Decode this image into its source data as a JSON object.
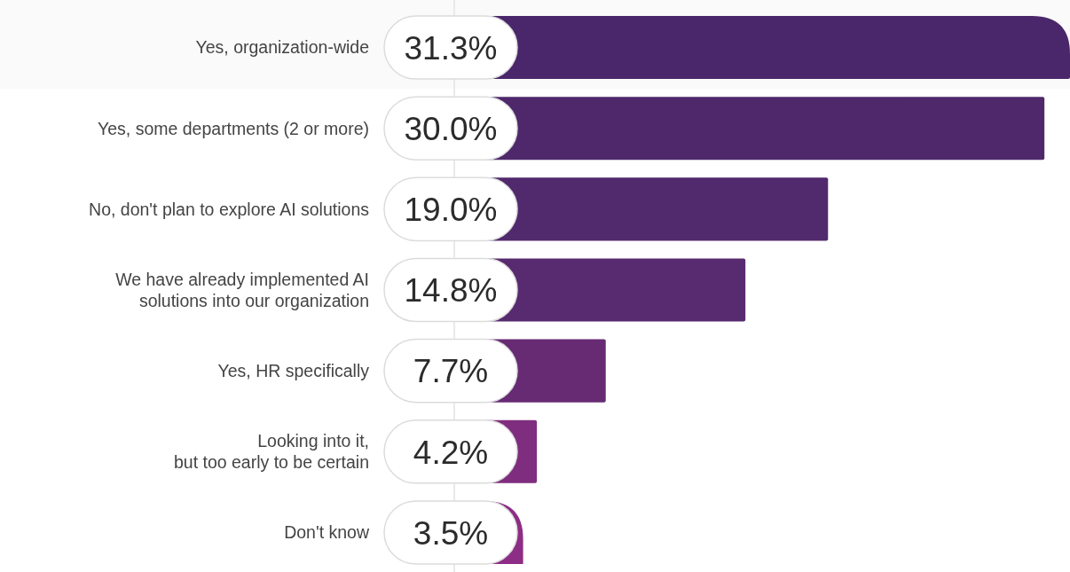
{
  "chart_data": {
    "type": "bar",
    "orientation": "horizontal",
    "categories": [
      "Yes, organization-wide",
      "Yes, some departments (2 or more)",
      "No, don't plan to explore AI solutions",
      "We have already implemented AI\nsolutions into our organization",
      "Yes, HR specifically",
      "Looking into it,\nbut too early to be certain",
      "Don't know"
    ],
    "values": [
      31.3,
      30.0,
      19.0,
      14.8,
      7.7,
      4.2,
      3.5
    ],
    "value_labels": [
      "31.3%",
      "30.0%",
      "19.0%",
      "14.8%",
      "7.7%",
      "4.2%",
      "3.5%"
    ],
    "colors": [
      "#4a276a",
      "#4e286b",
      "#51296d",
      "#582a70",
      "#672b74",
      "#7f2d7e",
      "#8d2d85"
    ]
  }
}
